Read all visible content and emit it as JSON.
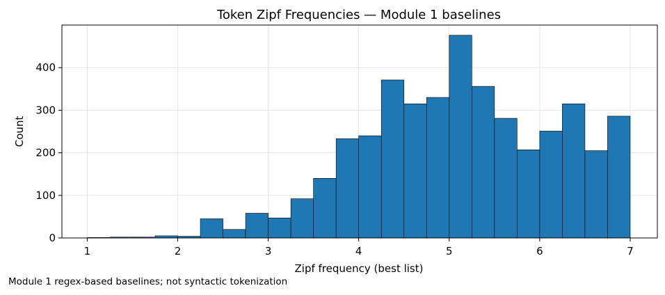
{
  "chart_data": {
    "type": "bar",
    "title": "Token Zipf Frequencies — Module 1 baselines",
    "xlabel": "Zipf frequency (best list)",
    "ylabel": "Count",
    "xlim": [
      0.72,
      7.3
    ],
    "ylim": [
      0,
      500
    ],
    "xticks": [
      1,
      2,
      3,
      4,
      5,
      6,
      7
    ],
    "yticks": [
      0,
      100,
      200,
      300,
      400
    ],
    "grid": true,
    "bar_color": "#1f77b4",
    "edge_color": "#000000",
    "bins": [
      {
        "x0": 1.0,
        "x1": 1.25,
        "count": 1
      },
      {
        "x0": 1.25,
        "x1": 1.5,
        "count": 2
      },
      {
        "x0": 1.5,
        "x1": 1.75,
        "count": 2
      },
      {
        "x0": 1.75,
        "x1": 2.0,
        "count": 5
      },
      {
        "x0": 2.0,
        "x1": 2.25,
        "count": 4
      },
      {
        "x0": 2.25,
        "x1": 2.5,
        "count": 45
      },
      {
        "x0": 2.5,
        "x1": 2.75,
        "count": 20
      },
      {
        "x0": 2.75,
        "x1": 3.0,
        "count": 58
      },
      {
        "x0": 3.0,
        "x1": 3.25,
        "count": 47
      },
      {
        "x0": 3.25,
        "x1": 3.5,
        "count": 92
      },
      {
        "x0": 3.5,
        "x1": 3.75,
        "count": 140
      },
      {
        "x0": 3.75,
        "x1": 4.0,
        "count": 233
      },
      {
        "x0": 4.0,
        "x1": 4.25,
        "count": 240
      },
      {
        "x0": 4.25,
        "x1": 4.5,
        "count": 371
      },
      {
        "x0": 4.5,
        "x1": 4.75,
        "count": 315
      },
      {
        "x0": 4.75,
        "x1": 5.0,
        "count": 330
      },
      {
        "x0": 5.0,
        "x1": 5.25,
        "count": 476
      },
      {
        "x0": 5.25,
        "x1": 5.5,
        "count": 356
      },
      {
        "x0": 5.5,
        "x1": 5.75,
        "count": 281
      },
      {
        "x0": 5.75,
        "x1": 6.0,
        "count": 207
      },
      {
        "x0": 6.0,
        "x1": 6.25,
        "count": 251
      },
      {
        "x0": 6.25,
        "x1": 6.5,
        "count": 315
      },
      {
        "x0": 6.5,
        "x1": 6.75,
        "count": 205
      },
      {
        "x0": 6.75,
        "x1": 7.0,
        "count": 286
      }
    ]
  },
  "caption": "Module 1 regex-based baselines; not syntactic tokenization"
}
